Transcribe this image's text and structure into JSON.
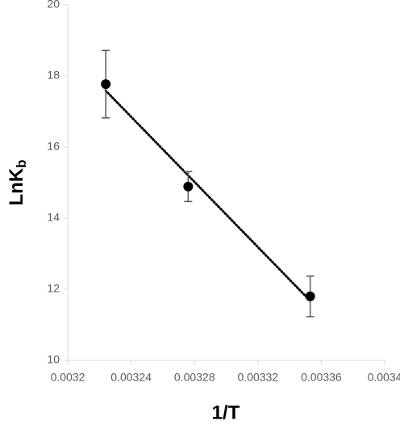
{
  "chart_data": {
    "type": "scatter",
    "x_label": "1/T",
    "y_label": "LnK",
    "y_label_subscript": "b",
    "x": [
      0.003224,
      0.003276,
      0.003353
    ],
    "values": [
      17.77,
      14.89,
      11.8
    ],
    "errors": [
      0.95,
      0.42,
      0.57
    ],
    "color": "#000000",
    "error_color": "#595959",
    "trendline": "linear",
    "trendline_style": "dotted",
    "xlim": [
      0.0032,
      0.0034
    ],
    "xticks": [
      0.0032,
      0.00324,
      0.00328,
      0.00332,
      0.00336,
      0.0034
    ],
    "ylim": [
      10,
      20
    ],
    "yticks": [
      10,
      12,
      14,
      16,
      18,
      20
    ],
    "grid": false
  }
}
